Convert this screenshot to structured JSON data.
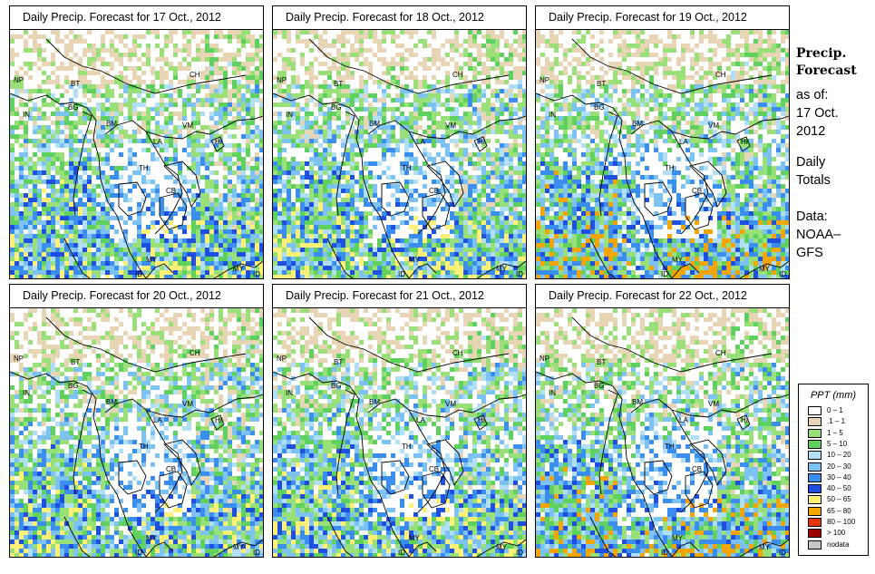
{
  "panels": [
    {
      "title": "Daily Precip. Forecast for  17 Oct., 2012"
    },
    {
      "title": "Daily Precip. Forecast for  18 Oct., 2012"
    },
    {
      "title": "Daily Precip. Forecast for  19 Oct., 2012"
    },
    {
      "title": "Daily Precip. Forecast for  20 Oct., 2012"
    },
    {
      "title": "Daily Precip. Forecast for  21 Oct., 2012"
    },
    {
      "title": "Daily Precip. Forecast for  22 Oct., 2012"
    }
  ],
  "country_labels": [
    "NP",
    "BT",
    "CH",
    "IN",
    "BG",
    "BM",
    "VM",
    "LA",
    "HI",
    "TH",
    "CB",
    "MY",
    "ID",
    "MY",
    "ID"
  ],
  "side": {
    "heading1": "Precip.",
    "heading2": "Forecast",
    "line1": "as of:",
    "line2": "17 Oct.",
    "line3": "2012",
    "line4": "Daily",
    "line5": "Totals",
    "line6": "Data:",
    "line7": "NOAA–",
    "line8": "GFS"
  },
  "legend": {
    "title": "PPT (mm)",
    "items": [
      {
        "label": "0 – 1",
        "color": "#ffffff"
      },
      {
        "label": ".1 – 1",
        "color": "#e8d5b5"
      },
      {
        "label": "1 – 5",
        "color": "#99e079"
      },
      {
        "label": "5 – 10",
        "color": "#5fd15f"
      },
      {
        "label": "10 – 20",
        "color": "#b1dff7"
      },
      {
        "label": "20 – 30",
        "color": "#7cc2f4"
      },
      {
        "label": "30 – 40",
        "color": "#3a8ef0"
      },
      {
        "label": "40 – 50",
        "color": "#1f4fe0"
      },
      {
        "label": "50 – 65",
        "color": "#fff176"
      },
      {
        "label": "65 – 80",
        "color": "#f5a500"
      },
      {
        "label": "80 – 100",
        "color": "#e5350c"
      },
      {
        "label": "> 100",
        "color": "#a00000"
      },
      {
        "label": "nodata",
        "color": "#c8c8c8"
      }
    ]
  }
}
